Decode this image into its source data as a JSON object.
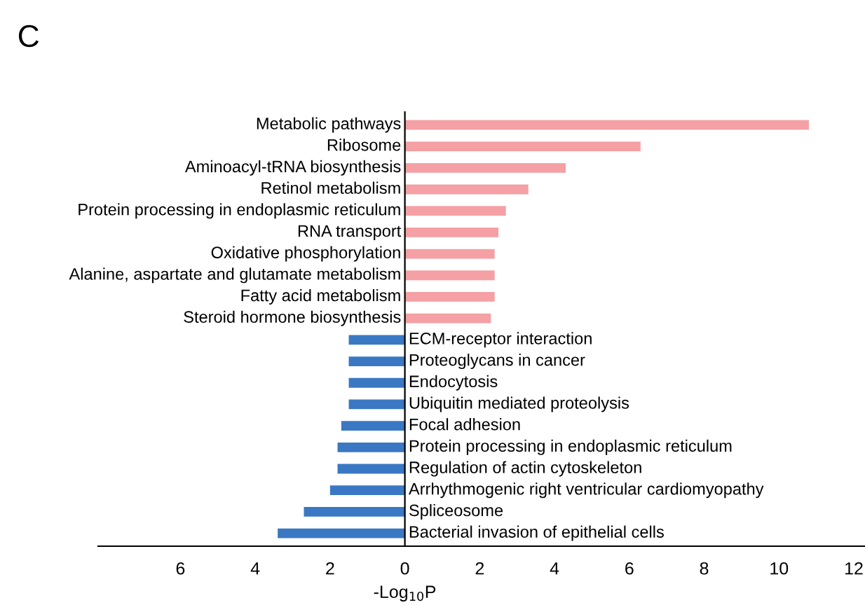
{
  "chart_data": {
    "type": "bar",
    "orientation": "horizontal",
    "xlabel": "-Log$_{10}$P",
    "annotations": [
      "C"
    ],
    "categories": [
      "Metabolic pathways",
      "Ribosome",
      "Aminoacyl-tRNA biosynthesis",
      "Retinol metabolism",
      "Protein processing in endoplasmic reticulum",
      "RNA transport",
      "Oxidative phosphorylation",
      "Alanine, aspartate and glutamate metabolism",
      "Fatty acid metabolism",
      "Steroid hormone biosynthesis",
      "ECM-receptor interaction",
      "Proteoglycans in cancer",
      "Endocytosis",
      "Ubiquitin mediated proteolysis",
      "Focal adhesion",
      "Protein processing in endoplasmic reticulum",
      "Regulation of actin cytoskeleton",
      "Arrhythmogenic right ventricular cardiomyopathy",
      "Spliceosome",
      "Bacterial invasion of epithelial cells"
    ],
    "values": [
      10.8,
      6.3,
      4.3,
      3.3,
      2.7,
      2.5,
      2.4,
      2.4,
      2.4,
      2.3,
      -1.5,
      -1.5,
      -1.5,
      -1.5,
      -1.7,
      -1.8,
      -1.8,
      -2.0,
      -2.7,
      -3.4
    ],
    "colors": [
      "#f4a0a4",
      "#f4a0a4",
      "#f4a0a4",
      "#f4a0a4",
      "#f4a0a4",
      "#f4a0a4",
      "#f4a0a4",
      "#f4a0a4",
      "#f4a0a4",
      "#f4a0a4",
      "#3a78c3",
      "#3a78c3",
      "#3a78c3",
      "#3a78c3",
      "#3a78c3",
      "#3a78c3",
      "#3a78c3",
      "#3a78c3",
      "#3a78c3",
      "#3a78c3"
    ],
    "xlim": [
      -8.2,
      12.3
    ],
    "xticks": [
      {
        "value": -6,
        "label": "6"
      },
      {
        "value": -4,
        "label": "4"
      },
      {
        "value": -2,
        "label": "2"
      },
      0,
      2,
      4,
      6,
      8,
      10,
      12
    ],
    "grid": false,
    "legend": false
  }
}
